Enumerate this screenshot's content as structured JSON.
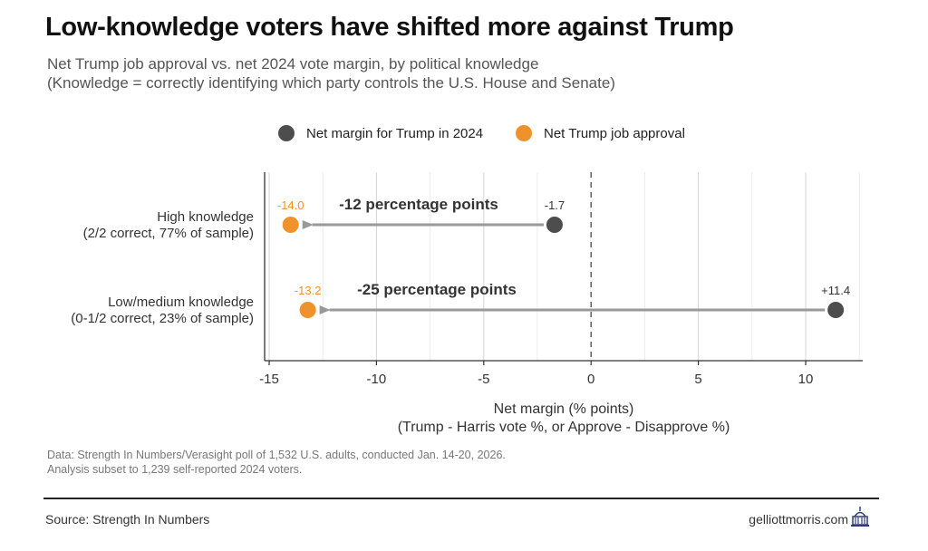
{
  "header": {
    "title": "Low-knowledge voters have shifted more against Trump",
    "subtitle_line1": "Net Trump job approval vs. net 2024 vote margin, by political knowledge",
    "subtitle_line2": "(Knowledge = correctly identifying which party controls the U.S. House and Senate)"
  },
  "chart_data": {
    "type": "dot-arrow",
    "title": "Low-knowledge voters have shifted more against Trump",
    "xlabel_line1": "Net margin (% points)",
    "xlabel_line2": "(Trump - Harris vote %, or Approve - Disapprove %)",
    "xlim": [
      -15,
      12.5
    ],
    "xticks": [
      -15,
      -10,
      -5,
      0,
      5,
      10
    ],
    "xtick_labels": [
      "-15",
      "-10",
      "-5",
      "0",
      "5",
      "10"
    ],
    "legend": [
      {
        "name": "Net margin for Trump in 2024",
        "color": "#4d4d4d"
      },
      {
        "name": "Net Trump job approval",
        "color": "#f0922b"
      }
    ],
    "legend_position": "top",
    "rows": [
      {
        "label_line1": "High knowledge",
        "label_line2": "(2/2 correct, 77% of sample)",
        "margin_2024": -1.7,
        "approval": -14.0,
        "margin_label": "-1.7",
        "approval_label": "-14.0",
        "change_label": "-12 percentage points"
      },
      {
        "label_line1": "Low/medium knowledge",
        "label_line2": "(0-1/2 correct, 23% of sample)",
        "margin_2024": 11.4,
        "approval": -13.2,
        "margin_label": "+11.4",
        "approval_label": "-13.2",
        "change_label": "-25 percentage points"
      }
    ]
  },
  "note": {
    "line1": "Data: Strength In Numbers/Verasight poll of 1,532 U.S. adults, conducted Jan. 14-20, 2026.",
    "line2": "Analysis subset to 1,239 self-reported 2024 voters."
  },
  "footer": {
    "source": "Source: Strength In Numbers",
    "site": "gelliottmorris.com",
    "logo_icon": "capitol-building-icon"
  },
  "colors": {
    "vote_dot": "#4d4d4d",
    "approval_dot": "#f0922b",
    "arrow": "#999999"
  }
}
